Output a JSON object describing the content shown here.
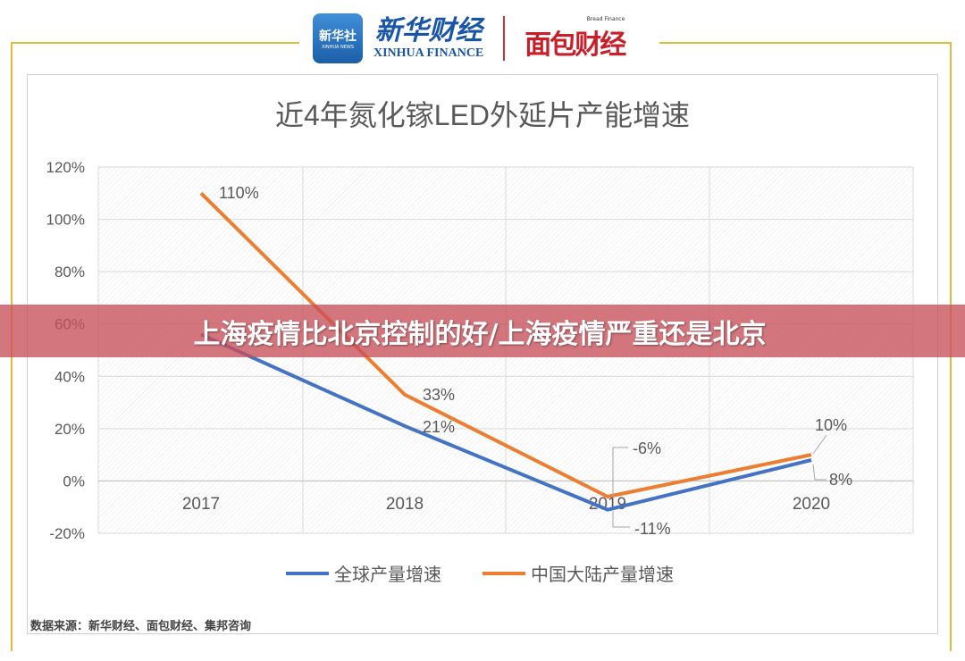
{
  "header": {
    "xinhua_badge_cn": "新华社",
    "xinhua_badge_en": "XINHUA NEWS",
    "xinhua_finance_cn": "新华财经",
    "xinhua_finance_en": "XINHUA FINANCE",
    "bread_finance_en": "Bread Finance",
    "bread_finance_cn": "面包财经"
  },
  "banner": {
    "text": "上海疫情比北京控制的好/上海疫情严重还是北京"
  },
  "source": "数据来源：新华财经、面包财经、集邦咨询",
  "colors": {
    "global": "#4472c4",
    "china": "#ed7d31",
    "banner": "#c8505a"
  },
  "chart_data": {
    "type": "line",
    "title": "近4年氮化镓LED外延片产能增速",
    "categories": [
      "2017",
      "2018",
      "2019",
      "2020"
    ],
    "ylim": [
      -20,
      120
    ],
    "yticks": [
      "-20%",
      "0%",
      "20%",
      "40%",
      "60%",
      "80%",
      "100%",
      "120%"
    ],
    "ytick_values": [
      -20,
      0,
      20,
      40,
      60,
      80,
      100,
      120
    ],
    "grid": true,
    "legend": "bottom",
    "series": [
      {
        "name": "全球产量增速",
        "values": [
          56,
          21,
          -11,
          8
        ],
        "labels": [
          null,
          "21%",
          "-11%",
          "8%"
        ]
      },
      {
        "name": "中国大陆产量增速",
        "values": [
          110,
          33,
          -6,
          10
        ],
        "labels": [
          "110%",
          "33%",
          "-6%",
          "10%"
        ]
      }
    ]
  }
}
